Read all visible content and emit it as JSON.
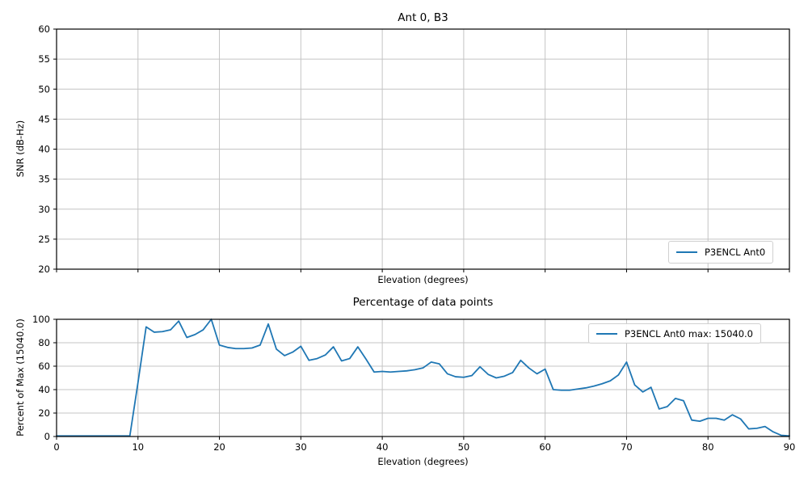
{
  "figure": {
    "background": "#ffffff",
    "line_color": "#1f77b4",
    "grid_color": "#c4c4c4",
    "spine_color": "#000000"
  },
  "chart_data": [
    {
      "type": "line",
      "title": "Ant 0, B3",
      "xlabel": "Elevation (degrees)",
      "ylabel": "SNR (dB-Hz)",
      "xlim": [
        0,
        90
      ],
      "ylim": [
        20,
        60
      ],
      "xticks": [
        0,
        10,
        20,
        30,
        40,
        50,
        60,
        70,
        80,
        90
      ],
      "x_tick_labels_visible": false,
      "yticks": [
        20,
        25,
        30,
        35,
        40,
        45,
        50,
        55,
        60
      ],
      "grid": true,
      "legend": {
        "position": "lower right",
        "entries": [
          {
            "label": "P3ENCL Ant0",
            "color": "#1f77b4"
          }
        ]
      },
      "series": []
    },
    {
      "type": "line",
      "title": "Percentage of data points",
      "xlabel": "Elevation (degrees)",
      "ylabel": "Percent of Max (15040.0)",
      "xlim": [
        0,
        90
      ],
      "ylim": [
        0,
        100
      ],
      "xticks": [
        0,
        10,
        20,
        30,
        40,
        50,
        60,
        70,
        80,
        90
      ],
      "x_tick_labels_visible": true,
      "yticks": [
        0,
        20,
        40,
        60,
        80,
        100
      ],
      "grid": true,
      "legend": {
        "position": "upper right",
        "entries": [
          {
            "label": "P3ENCL Ant0 max: 15040.0",
            "color": "#1f77b4"
          }
        ]
      },
      "series": [
        {
          "name": "P3ENCL Ant0 max: 15040.0",
          "color": "#1f77b4",
          "x": [
            0,
            1,
            2,
            3,
            4,
            5,
            6,
            7,
            8,
            9,
            10,
            11,
            12,
            13,
            14,
            15,
            16,
            17,
            18,
            19,
            20,
            21,
            22,
            23,
            24,
            25,
            26,
            27,
            28,
            29,
            30,
            31,
            32,
            33,
            34,
            35,
            36,
            37,
            38,
            39,
            40,
            41,
            42,
            43,
            44,
            45,
            46,
            47,
            48,
            49,
            50,
            51,
            52,
            53,
            54,
            55,
            56,
            57,
            58,
            59,
            60,
            61,
            62,
            63,
            64,
            65,
            66,
            67,
            68,
            69,
            70,
            71,
            72,
            73,
            74,
            75,
            76,
            77,
            78,
            79,
            80,
            81,
            82,
            83,
            84,
            85,
            86,
            87,
            88,
            89,
            90
          ],
          "y": [
            0.5,
            0.5,
            0.5,
            0.5,
            0.5,
            0.5,
            0.5,
            0.5,
            0.5,
            0.5,
            46,
            93.5,
            89,
            89.5,
            91,
            98.5,
            84.5,
            87,
            91,
            100,
            78,
            76,
            75,
            75,
            75.5,
            78,
            96,
            74.5,
            69,
            72,
            77,
            65,
            66.5,
            69.5,
            76.5,
            64.5,
            66.5,
            76.5,
            66,
            55,
            55.5,
            55,
            55.5,
            56,
            57,
            58.5,
            63.5,
            62,
            53.5,
            51,
            50.5,
            52,
            59.5,
            53,
            50,
            51.5,
            54.5,
            65,
            58.5,
            53.5,
            57.5,
            40,
            39.5,
            39.5,
            40.5,
            41.5,
            43,
            45,
            47.5,
            52.5,
            63.5,
            44,
            38,
            42,
            23.5,
            25.5,
            32.5,
            30.5,
            14,
            13,
            15.5,
            15.5,
            14,
            18.5,
            15,
            6.5,
            7,
            8.5,
            4,
            1,
            0.5
          ]
        }
      ]
    }
  ]
}
